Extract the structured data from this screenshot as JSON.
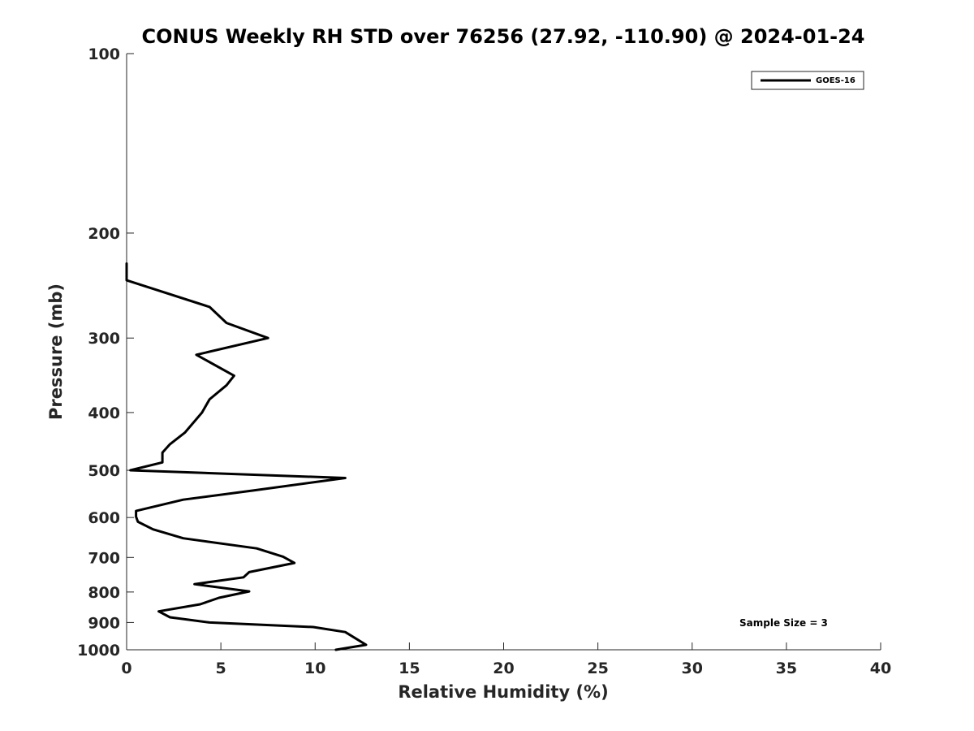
{
  "chart_data": {
    "type": "line",
    "title": "CONUS Weekly RH STD over 76256 (27.92, -110.90) @ 2024-01-24",
    "xlabel": "Relative Humidity (%)",
    "ylabel": "Pressure (mb)",
    "xlim": [
      0,
      40
    ],
    "ylim": [
      1000,
      100
    ],
    "yscale": "log",
    "y_reversed": true,
    "xticks": [
      0,
      5,
      10,
      15,
      20,
      25,
      30,
      35,
      40
    ],
    "yticks": [
      100,
      200,
      300,
      400,
      500,
      600,
      700,
      800,
      900,
      1000
    ],
    "grid": false,
    "legend_position": "top-right",
    "annotation": "Sample Size = 3",
    "series": [
      {
        "name": "GOES-16",
        "color": "#000000",
        "points": [
          {
            "x": 11.1,
            "y": 1000
          },
          {
            "x": 12.7,
            "y": 981
          },
          {
            "x": 12.1,
            "y": 955
          },
          {
            "x": 11.6,
            "y": 934
          },
          {
            "x": 9.9,
            "y": 916
          },
          {
            "x": 4.4,
            "y": 900
          },
          {
            "x": 2.3,
            "y": 882
          },
          {
            "x": 1.7,
            "y": 862
          },
          {
            "x": 3.9,
            "y": 839
          },
          {
            "x": 4.9,
            "y": 818
          },
          {
            "x": 6.5,
            "y": 798
          },
          {
            "x": 3.6,
            "y": 776
          },
          {
            "x": 6.2,
            "y": 756
          },
          {
            "x": 6.5,
            "y": 741
          },
          {
            "x": 8.9,
            "y": 715
          },
          {
            "x": 8.3,
            "y": 698
          },
          {
            "x": 6.9,
            "y": 676
          },
          {
            "x": 3.0,
            "y": 650
          },
          {
            "x": 1.4,
            "y": 628
          },
          {
            "x": 0.6,
            "y": 610
          },
          {
            "x": 0.5,
            "y": 598
          },
          {
            "x": 0.5,
            "y": 585
          },
          {
            "x": 3.0,
            "y": 560
          },
          {
            "x": 6.8,
            "y": 540
          },
          {
            "x": 11.6,
            "y": 515
          },
          {
            "x": 0.2,
            "y": 500
          },
          {
            "x": 1.9,
            "y": 485
          },
          {
            "x": 1.9,
            "y": 467
          },
          {
            "x": 2.3,
            "y": 452
          },
          {
            "x": 3.1,
            "y": 432
          },
          {
            "x": 4.0,
            "y": 400
          },
          {
            "x": 4.4,
            "y": 380
          },
          {
            "x": 5.3,
            "y": 360
          },
          {
            "x": 5.7,
            "y": 347
          },
          {
            "x": 3.7,
            "y": 320
          },
          {
            "x": 7.5,
            "y": 300
          },
          {
            "x": 5.3,
            "y": 283
          },
          {
            "x": 4.4,
            "y": 266
          },
          {
            "x": 0.0,
            "y": 240
          },
          {
            "x": 0.0,
            "y": 225
          }
        ]
      }
    ]
  }
}
